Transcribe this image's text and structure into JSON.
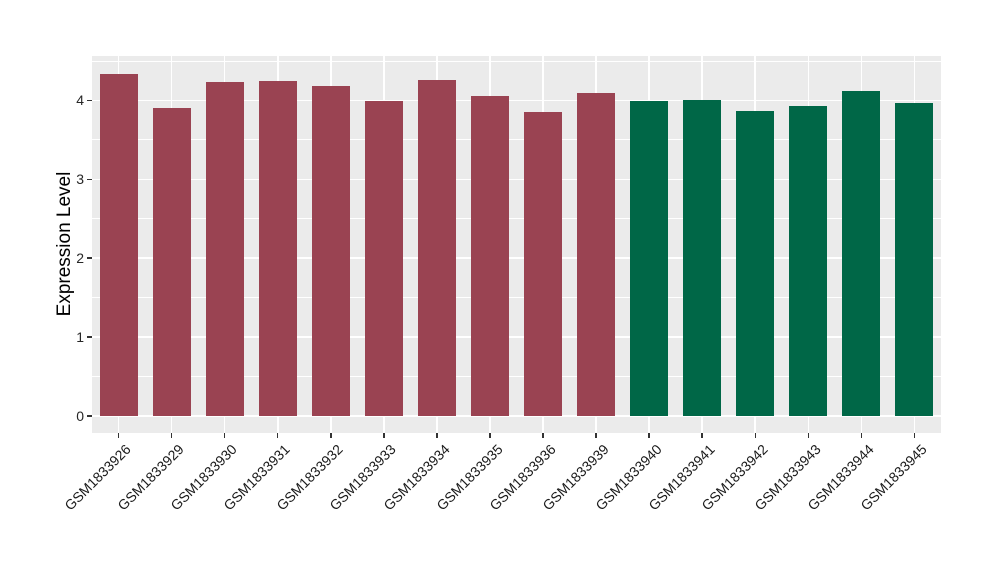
{
  "figure": {
    "background": "#ffffff",
    "panel_background": "#EBEBEB",
    "grid_color": "#ffffff",
    "tick_mark_color": "#333333",
    "axis_text_color": "#262626",
    "axis_title_color": "#000000",
    "group_colors": {
      "left_group": "#9A4352",
      "right_group": "#006747"
    }
  },
  "chart_data": {
    "type": "bar",
    "title": "",
    "xlabel": "",
    "ylabel": "Expression Level",
    "categories": [
      "GSM1833926",
      "GSM1833929",
      "GSM1833930",
      "GSM1833931",
      "GSM1833932",
      "GSM1833933",
      "GSM1833934",
      "GSM1833935",
      "GSM1833936",
      "GSM1833939",
      "GSM1833940",
      "GSM1833941",
      "GSM1833942",
      "GSM1833943",
      "GSM1833944",
      "GSM1833945"
    ],
    "values": [
      4.34,
      3.9,
      4.23,
      4.25,
      4.18,
      3.99,
      4.26,
      4.05,
      3.85,
      4.1,
      3.99,
      4.0,
      3.86,
      3.93,
      4.12,
      3.97
    ],
    "colors": [
      "#9A4352",
      "#9A4352",
      "#9A4352",
      "#9A4352",
      "#9A4352",
      "#9A4352",
      "#9A4352",
      "#9A4352",
      "#9A4352",
      "#9A4352",
      "#006747",
      "#006747",
      "#006747",
      "#006747",
      "#006747",
      "#006747"
    ],
    "yticks": [
      0,
      1,
      2,
      3,
      4
    ],
    "yticks_minor": [
      0.5,
      1.5,
      2.5,
      3.5,
      4.5
    ],
    "ylim": [
      -0.2155,
      4.5627
    ],
    "grid": true,
    "legend": "none",
    "x_label_angle_deg": 45
  }
}
